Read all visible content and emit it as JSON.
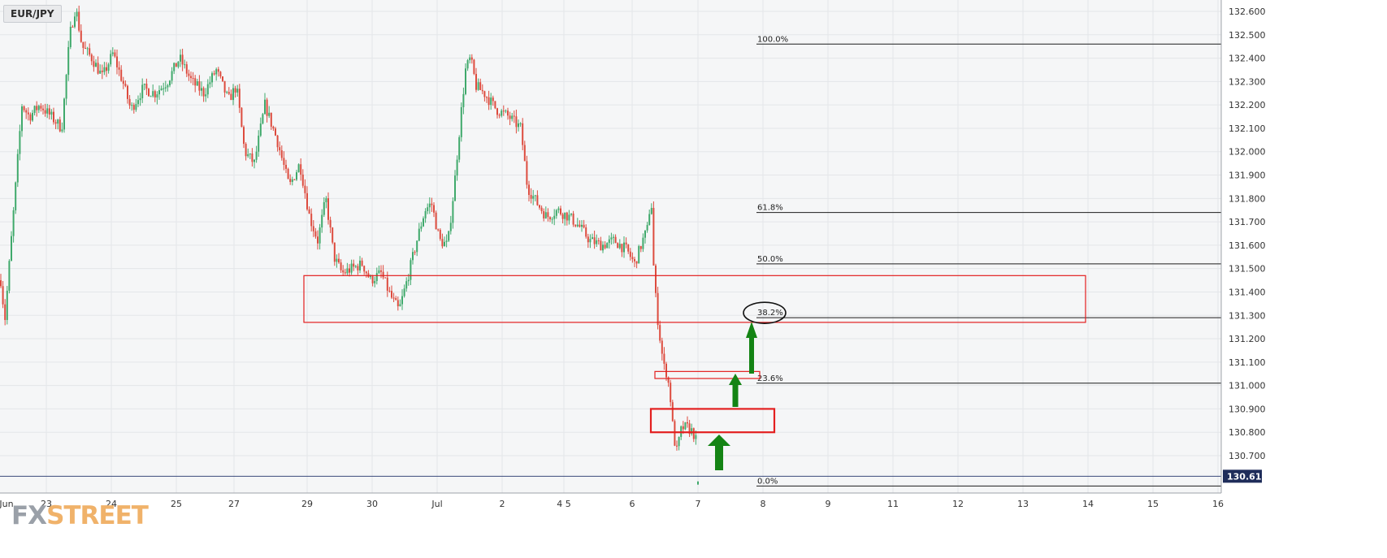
{
  "symbol": "EUR/JPY",
  "logo": {
    "part1": "FX",
    "part2": "STREET"
  },
  "chart_data": {
    "type": "candlestick",
    "symbol": "EUR/JPY",
    "x_axis_labels": [
      "Jun",
      "23",
      "24",
      "25",
      "27",
      "29",
      "30",
      "Jul",
      "2",
      "4 5",
      "6",
      "7",
      "8",
      "9",
      "11",
      "12",
      "13",
      "14",
      "15",
      "16"
    ],
    "y_axis": {
      "ticks": [
        "132.600",
        "132.500",
        "132.400",
        "132.300",
        "132.200",
        "132.100",
        "132.000",
        "131.900",
        "131.800",
        "131.700",
        "131.600",
        "131.500",
        "131.400",
        "131.300",
        "131.200",
        "131.100",
        "131.000",
        "130.900",
        "130.800",
        "130.700"
      ],
      "range": [
        130.55,
        132.65
      ]
    },
    "current_price": "130.612",
    "fibonacci_levels": [
      {
        "label": "100.0%",
        "price": 132.46
      },
      {
        "label": "61.8%",
        "price": 131.74
      },
      {
        "label": "50.0%",
        "price": 131.52
      },
      {
        "label": "38.2%",
        "price": 131.29
      },
      {
        "label": "23.6%",
        "price": 131.01
      },
      {
        "label": "0.0%",
        "price": 130.57
      }
    ],
    "zones": [
      {
        "name": "resistance-zone",
        "from": 131.27,
        "to": 131.47,
        "start_day": "29",
        "end_day": "14"
      },
      {
        "name": "minor-zone",
        "from": 131.03,
        "to": 131.06,
        "start_day": "6",
        "end_day": "8"
      },
      {
        "name": "support-zone",
        "from": 130.8,
        "to": 130.9,
        "start_day": "6",
        "end_day": "8"
      }
    ],
    "price_path": [
      [
        0,
        131.45
      ],
      [
        5,
        131.28
      ],
      [
        10,
        131.5
      ],
      [
        17,
        131.8
      ],
      [
        26,
        132.2
      ],
      [
        35,
        132.15
      ],
      [
        48,
        132.2
      ],
      [
        62,
        132.15
      ],
      [
        75,
        132.1
      ],
      [
        85,
        132.5
      ],
      [
        92,
        132.62
      ],
      [
        100,
        132.45
      ],
      [
        112,
        132.4
      ],
      [
        125,
        132.32
      ],
      [
        138,
        132.42
      ],
      [
        150,
        132.3
      ],
      [
        160,
        132.18
      ],
      [
        175,
        132.27
      ],
      [
        190,
        132.25
      ],
      [
        205,
        132.3
      ],
      [
        220,
        132.4
      ],
      [
        235,
        132.3
      ],
      [
        250,
        132.25
      ],
      [
        265,
        132.35
      ],
      [
        280,
        132.22
      ],
      [
        290,
        132.28
      ],
      [
        300,
        132.0
      ],
      [
        312,
        131.95
      ],
      [
        325,
        132.2
      ],
      [
        340,
        132.05
      ],
      [
        355,
        131.85
      ],
      [
        368,
        131.95
      ],
      [
        380,
        131.72
      ],
      [
        390,
        131.62
      ],
      [
        400,
        131.8
      ],
      [
        410,
        131.55
      ],
      [
        420,
        131.48
      ],
      [
        432,
        131.5
      ],
      [
        445,
        131.52
      ],
      [
        455,
        131.45
      ],
      [
        468,
        131.48
      ],
      [
        480,
        131.38
      ],
      [
        490,
        131.32
      ],
      [
        500,
        131.45
      ],
      [
        512,
        131.62
      ],
      [
        522,
        131.75
      ],
      [
        530,
        131.78
      ],
      [
        540,
        131.62
      ],
      [
        550,
        131.6
      ],
      [
        558,
        131.85
      ],
      [
        566,
        132.15
      ],
      [
        572,
        132.35
      ],
      [
        578,
        132.4
      ],
      [
        585,
        132.28
      ],
      [
        595,
        132.25
      ],
      [
        610,
        132.18
      ],
      [
        625,
        132.15
      ],
      [
        640,
        132.1
      ],
      [
        648,
        131.85
      ],
      [
        660,
        131.78
      ],
      [
        672,
        131.72
      ],
      [
        685,
        131.75
      ],
      [
        700,
        131.72
      ],
      [
        712,
        131.68
      ],
      [
        725,
        131.62
      ],
      [
        740,
        131.6
      ],
      [
        755,
        131.62
      ],
      [
        770,
        131.58
      ],
      [
        780,
        131.52
      ],
      [
        790,
        131.62
      ],
      [
        797,
        131.68
      ],
      [
        800,
        131.85
      ],
      [
        804,
        131.45
      ],
      [
        808,
        131.3
      ],
      [
        812,
        131.18
      ],
      [
        816,
        131.08
      ],
      [
        820,
        131.05
      ],
      [
        824,
        130.95
      ],
      [
        828,
        130.78
      ],
      [
        832,
        130.72
      ],
      [
        838,
        130.82
      ],
      [
        845,
        130.82
      ],
      [
        852,
        130.8
      ],
      [
        856,
        130.76
      ]
    ]
  }
}
